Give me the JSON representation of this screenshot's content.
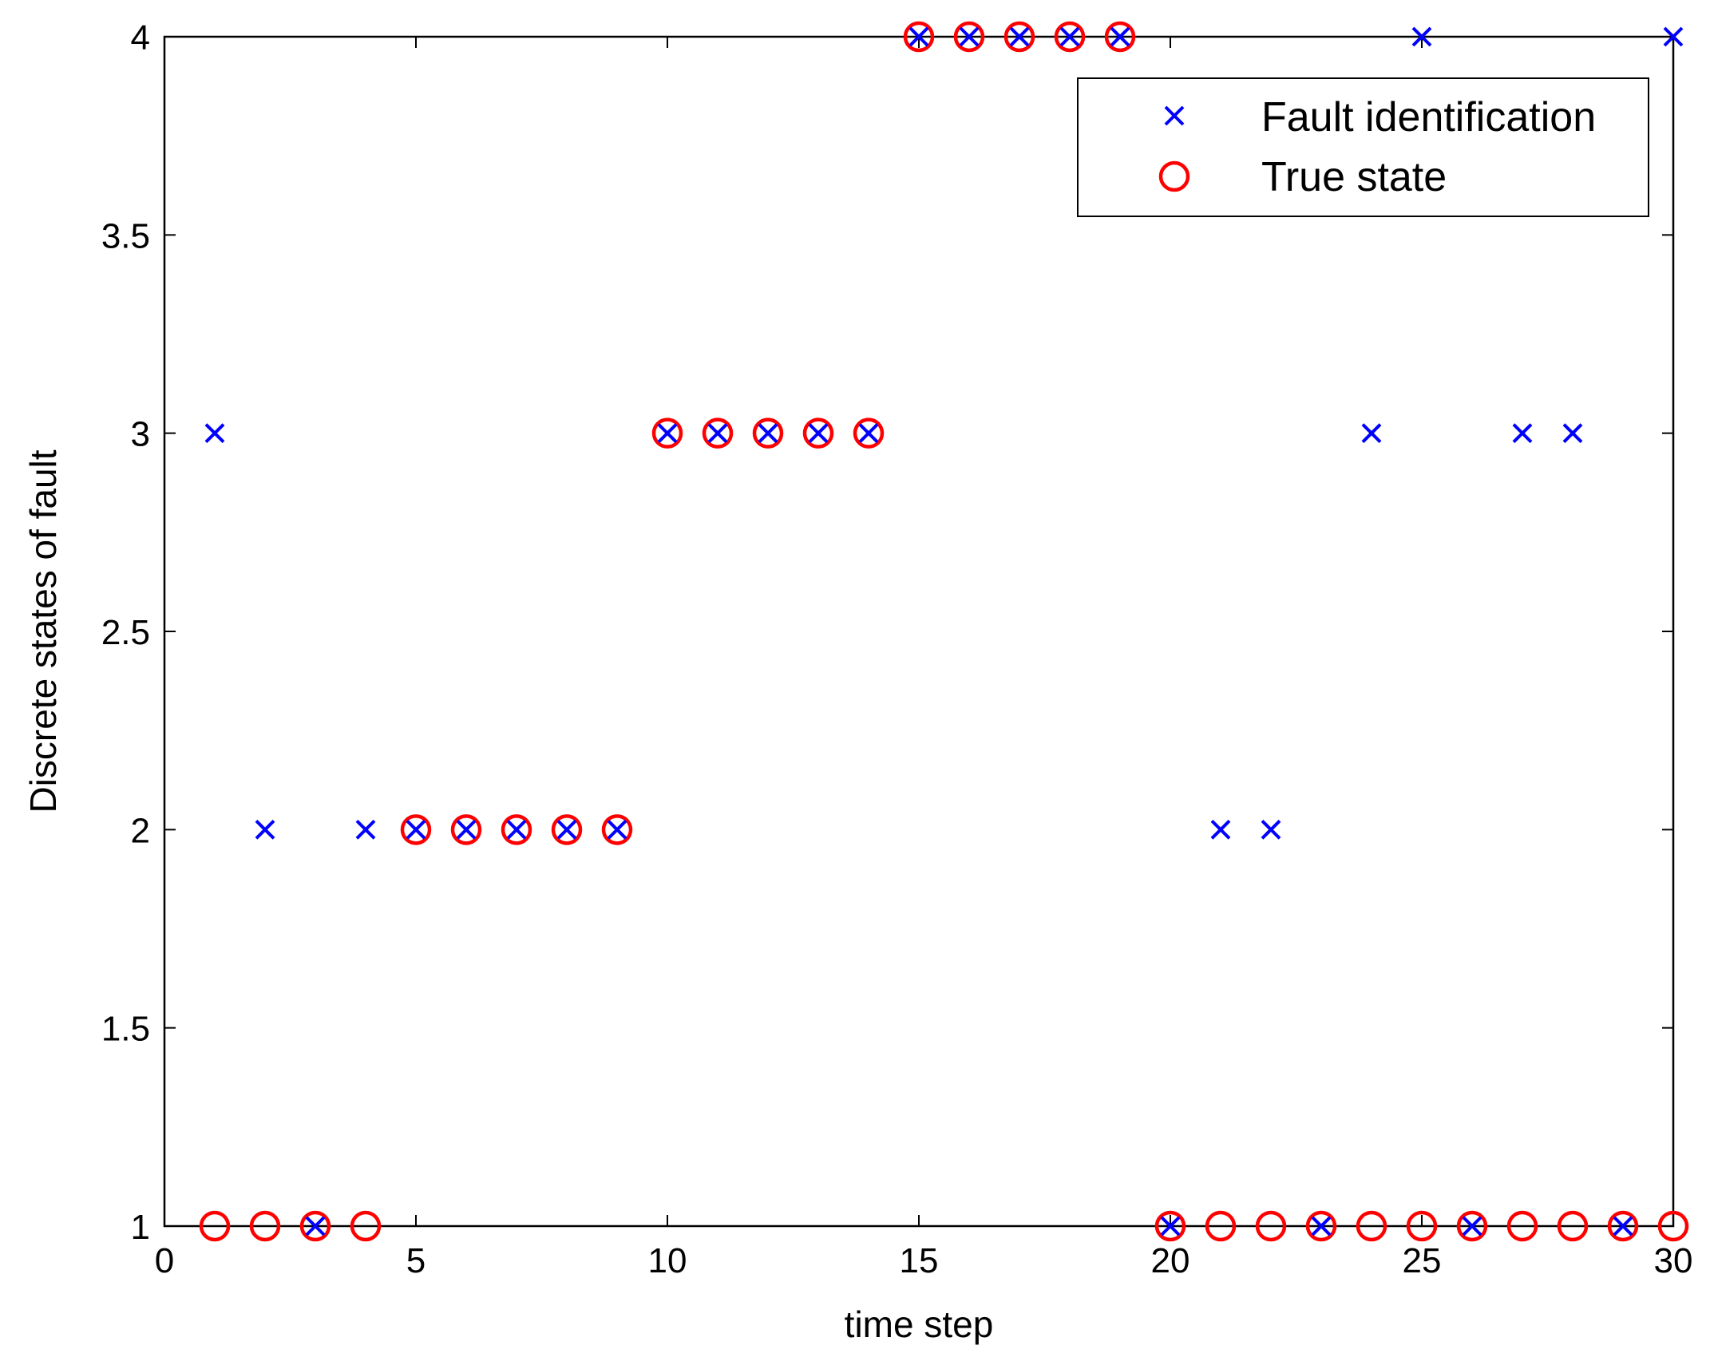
{
  "chart_data": {
    "type": "scatter",
    "title": "",
    "xlabel": "time step",
    "ylabel": "Discrete states of fault",
    "xlim": [
      0,
      30
    ],
    "ylim": [
      1,
      4
    ],
    "xticks": [
      0,
      5,
      10,
      15,
      20,
      25,
      30
    ],
    "yticks": [
      1,
      1.5,
      2,
      2.5,
      3,
      3.5,
      4
    ],
    "x_tick_labels": [
      "0",
      "5",
      "10",
      "15",
      "20",
      "25",
      "30"
    ],
    "y_tick_labels": [
      "1",
      "1.5",
      "2",
      "2.5",
      "3",
      "3.5",
      "4"
    ],
    "grid": false,
    "legend_position": "top-right",
    "series": [
      {
        "name": "Fault identification",
        "marker": "x",
        "color": "#0000ff",
        "x": [
          1,
          2,
          3,
          4,
          5,
          6,
          7,
          8,
          9,
          10,
          11,
          12,
          13,
          14,
          15,
          16,
          17,
          18,
          19,
          20,
          21,
          22,
          23,
          24,
          25,
          26,
          27,
          28,
          29,
          30
        ],
        "y": [
          3,
          2,
          1,
          2,
          2,
          2,
          2,
          2,
          2,
          3,
          3,
          3,
          3,
          3,
          4,
          4,
          4,
          4,
          4,
          1,
          2,
          2,
          1,
          3,
          4,
          1,
          3,
          3,
          1,
          4
        ]
      },
      {
        "name": "True state",
        "marker": "o",
        "color": "#ff0000",
        "x": [
          1,
          2,
          3,
          4,
          5,
          6,
          7,
          8,
          9,
          10,
          11,
          12,
          13,
          14,
          15,
          16,
          17,
          18,
          19,
          20,
          21,
          22,
          23,
          24,
          25,
          26,
          27,
          28,
          29,
          30
        ],
        "y": [
          1,
          1,
          1,
          1,
          2,
          2,
          2,
          2,
          2,
          3,
          3,
          3,
          3,
          3,
          4,
          4,
          4,
          4,
          4,
          1,
          1,
          1,
          1,
          1,
          1,
          1,
          1,
          1,
          1,
          1
        ]
      }
    ]
  }
}
